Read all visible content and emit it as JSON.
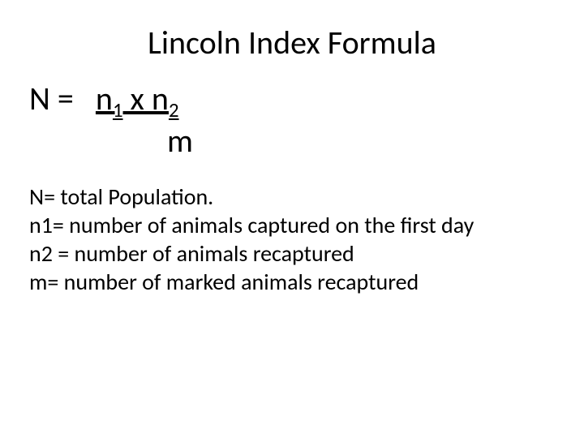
{
  "title": "Lincoln Index Formula",
  "formula": {
    "lhs": "N =   ",
    "n1_part": "n",
    "n1_sub": "1",
    "mid": " x n",
    "n2_sub": "2",
    "denom": "m"
  },
  "definitions": {
    "d1": "N= total Population.",
    "d2": "n1= number of animals captured on the first day",
    "d3": "n2 = number of animals recaptured",
    "d4": "m= number of marked animals recaptured"
  },
  "colors": {
    "background": "#ffffff",
    "text": "#000000"
  },
  "typography": {
    "title_fontsize": 40,
    "formula_fontsize": 40,
    "definition_fontsize": 28,
    "font_family": "Calibri"
  }
}
